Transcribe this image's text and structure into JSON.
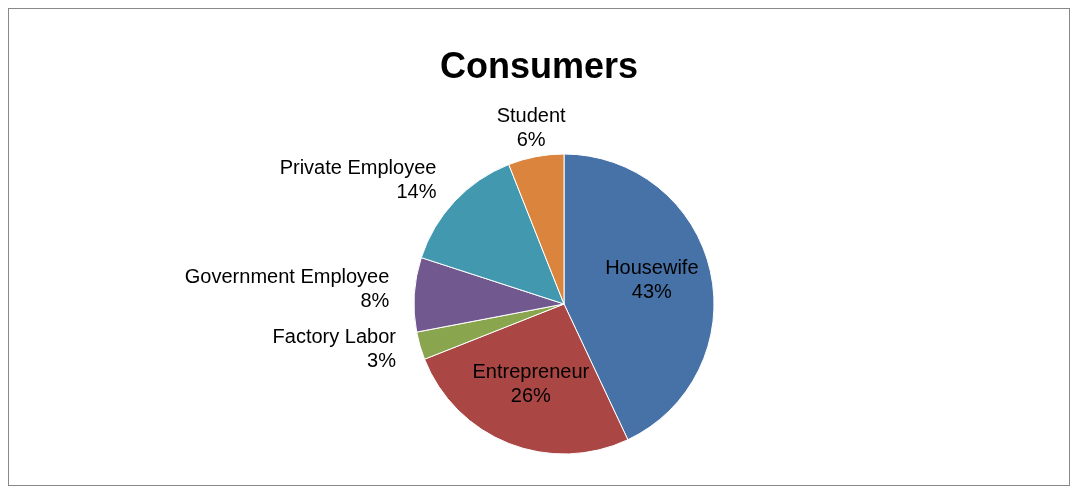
{
  "chart_data": {
    "type": "pie",
    "title": "Consumers",
    "categories": [
      "Housewife",
      "Entrepreneur",
      "Factory Labor",
      "Government Employee",
      "Private Employee",
      "Student"
    ],
    "values": [
      43,
      26,
      3,
      8,
      14,
      6
    ],
    "value_labels": [
      "43%",
      "26%",
      "3%",
      "8%",
      "14%",
      "6%"
    ],
    "colors": [
      "#4672a8",
      "#aa4643",
      "#89a54e",
      "#71588f",
      "#4198af",
      "#db843d"
    ],
    "legend": false
  }
}
